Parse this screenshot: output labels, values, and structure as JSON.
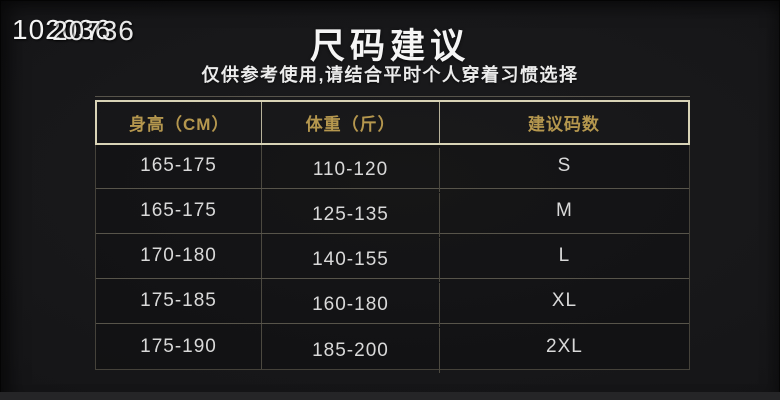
{
  "watermark": {
    "layer1": "102036",
    "layer2": "20736"
  },
  "header": {
    "title": "尺码建议",
    "subtitle": "仅供参考使用,请结合平时个人穿着习惯选择"
  },
  "table": {
    "columns": [
      "身高（CM）",
      "体重（斤）",
      "建议码数"
    ],
    "rows": [
      [
        "165-175",
        "110-120",
        "S"
      ],
      [
        "165-175",
        "125-135",
        "M"
      ],
      [
        "170-180",
        "140-155",
        "L"
      ],
      [
        "175-185",
        "160-180",
        "XL"
      ],
      [
        "175-190",
        "185-200",
        "2XL"
      ]
    ]
  },
  "colors": {
    "background": "#161618",
    "accent_gold": "#b5974e",
    "header_border": "#d8d3b6",
    "cell_text": "#d9d9d9",
    "title_text": "#f5f5f5"
  },
  "chart_data": {
    "type": "table",
    "title": "尺码建议",
    "subtitle": "仅供参考使用,请结合平时个人穿着习惯选择",
    "columns": [
      "身高（CM）",
      "体重（斤）",
      "建议码数"
    ],
    "rows": [
      [
        "165-175",
        "110-120",
        "S"
      ],
      [
        "165-175",
        "125-135",
        "M"
      ],
      [
        "170-180",
        "140-155",
        "L"
      ],
      [
        "175-185",
        "160-180",
        "XL"
      ],
      [
        "175-190",
        "185-200",
        "2XL"
      ]
    ]
  }
}
